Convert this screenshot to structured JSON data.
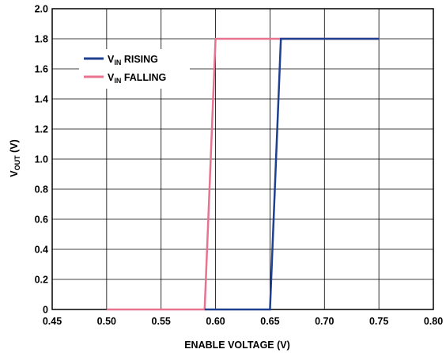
{
  "chart_data": {
    "type": "line",
    "xlabel": "ENABLE VOLTAGE (V)",
    "ylabel_main": "V",
    "ylabel_sub": "OUT",
    "ylabel_unit": " (V)",
    "xlim": [
      0.45,
      0.8
    ],
    "ylim": [
      0,
      2.0
    ],
    "xticks": [
      "0.45",
      "0.50",
      "0.55",
      "0.60",
      "0.65",
      "0.70",
      "0.75",
      "0.80"
    ],
    "yticks": [
      "0",
      "0.2",
      "0.4",
      "0.6",
      "0.8",
      "1.0",
      "1.2",
      "1.4",
      "1.6",
      "1.8",
      "2.0"
    ],
    "grid": true,
    "legend_position": "top-left",
    "series": [
      {
        "name_main": "V",
        "name_sub": "IN",
        "name_rest": " RISING",
        "color": "#1f3f8f",
        "points": [
          [
            0.59,
            0
          ],
          [
            0.65,
            0
          ],
          [
            0.66,
            1.8
          ],
          [
            0.75,
            1.8
          ]
        ]
      },
      {
        "name_main": "V",
        "name_sub": "IN",
        "name_rest": " FALLING",
        "color": "#e8738f",
        "points": [
          [
            0.5,
            0
          ],
          [
            0.59,
            0
          ],
          [
            0.6,
            1.8
          ],
          [
            0.75,
            1.8
          ]
        ]
      }
    ]
  }
}
